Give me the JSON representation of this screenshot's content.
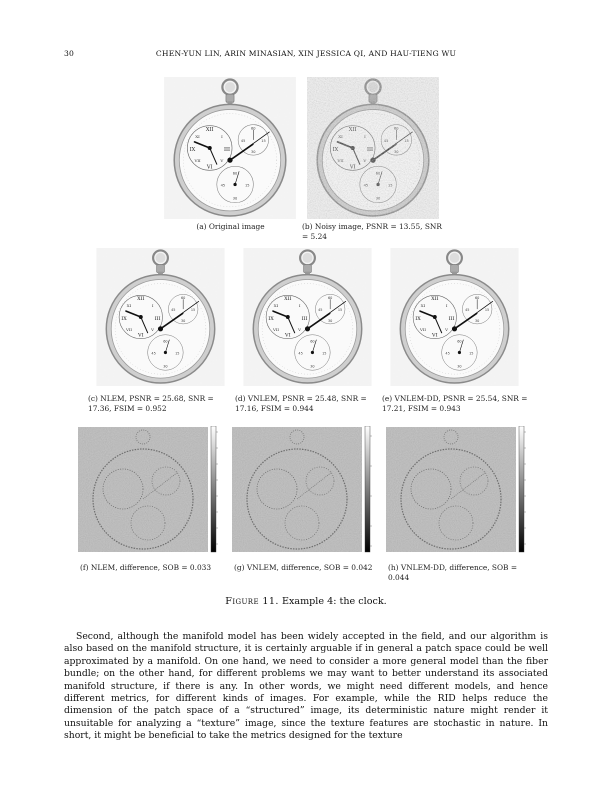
{
  "header": {
    "page_number": "30",
    "running_title": "CHEN-YUN LIN, ARIN MINASIAN, XIN JESSICA QI, AND HAU-TIENG WU"
  },
  "figure": {
    "label": "Figure 11.",
    "title": "Example 4: the clock.",
    "panels": [
      {
        "id": "a",
        "caption": "(a) Original image"
      },
      {
        "id": "b",
        "caption": "(b) Noisy image, PSNR = 13.55, SNR = 5.24"
      },
      {
        "id": "c",
        "caption": "(c) NLEM, PSNR = 25.68, SNR = 17.36, FSIM = 0.952"
      },
      {
        "id": "d",
        "caption": "(d) VNLEM, PSNR = 25.48, SNR = 17.16, FSIM = 0.944"
      },
      {
        "id": "e",
        "caption": "(e) VNLEM-DD, PSNR = 25.54, SNR = 17.21, FSIM = 0.943"
      },
      {
        "id": "f",
        "caption": "(f) NLEM, difference, SOB = 0.033"
      },
      {
        "id": "g",
        "caption": "(g) VNLEM, difference, SOB = 0.042"
      },
      {
        "id": "h",
        "caption": "(h) VNLEM-DD, difference, SOB = 0.044"
      }
    ]
  },
  "body": {
    "paragraph": "Second, although the manifold model has been widely accepted in the field, and our algorithm is also based on the manifold structure, it is certainly arguable if in general a patch space could be well approximated by a manifold. On one hand, we need to consider a more general model than the fiber bundle; on the other hand, for different problems we may want to better understand its associated manifold structure, if there is any. In other words, we might need different models, and hence different metrics, for different kinds of images. For example, while the RID helps reduce the dimension of the patch space of a “structured” image, its deterministic nature might render it unsuitable for analyzing a “texture” image, since the texture features are stochastic in nature. In short, it might be beneficial to take the metrics designed for the texture"
  }
}
